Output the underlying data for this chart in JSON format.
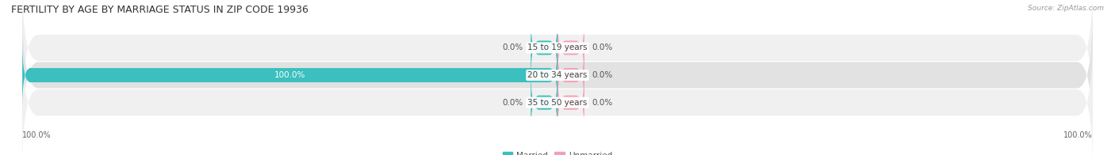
{
  "title": "FERTILITY BY AGE BY MARRIAGE STATUS IN ZIP CODE 19936",
  "source": "Source: ZipAtlas.com",
  "rows": [
    {
      "label": "15 to 19 years",
      "married": 0.0,
      "unmarried": 0.0
    },
    {
      "label": "20 to 34 years",
      "married": 100.0,
      "unmarried": 0.0
    },
    {
      "label": "35 to 50 years",
      "married": 0.0,
      "unmarried": 0.0
    }
  ],
  "married_color": "#3BBFBF",
  "unmarried_color": "#F4A0B4",
  "row_bg_color_odd": "#F0F0F0",
  "row_bg_color_even": "#E2E2E2",
  "title_fontsize": 9,
  "value_fontsize": 7.5,
  "label_fontsize": 7.5,
  "tick_fontsize": 7,
  "x_left_label": "100.0%",
  "x_right_label": "100.0%",
  "max_val": 100.0,
  "bar_height": 0.52,
  "stub_val": 5.0
}
